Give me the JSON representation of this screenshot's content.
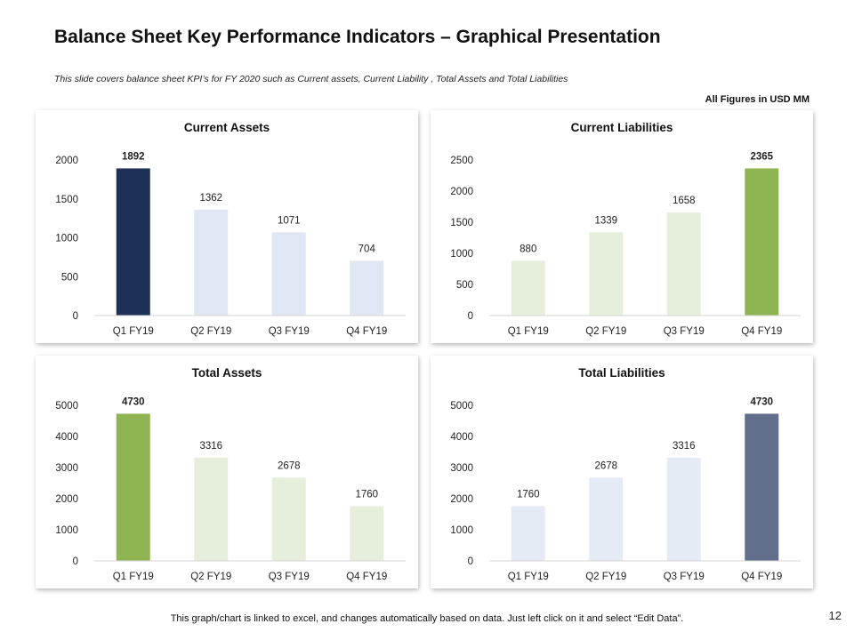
{
  "slide": {
    "title": "Balance Sheet Key Performance Indicators – Graphical Presentation",
    "subtitle": "This slide covers balance sheet KPI’s  for FY 2020 such as Current assets, Current Liability , Total Assets and Total Liabilities",
    "units_note": "All Figures in USD MM",
    "footer": "This graph/chart is linked to excel, and changes automatically based on data. Just left click on it and select “Edit Data”.",
    "page_number": "12"
  },
  "chart_data": [
    {
      "type": "bar",
      "title": "Current Assets",
      "categories": [
        "Q1 FY19",
        "Q2 FY19",
        "Q3 FY19",
        "Q4 FY19"
      ],
      "values": [
        1892,
        1362,
        1071,
        704
      ],
      "ylim": [
        0,
        2000
      ],
      "yticks": [
        0,
        500,
        1000,
        1500,
        2000
      ],
      "colors": [
        "#1f3057",
        "#dfe6f4",
        "#dfe6f4",
        "#dfe6f4"
      ],
      "bold_labels": [
        true,
        false,
        false,
        false
      ],
      "grid": false,
      "legend": "none"
    },
    {
      "type": "bar",
      "title": "Current Liabilities",
      "categories": [
        "Q1 FY19",
        "Q2 FY19",
        "Q3 FY19",
        "Q4 FY19"
      ],
      "values": [
        880,
        1339,
        1658,
        2365
      ],
      "ylim": [
        0,
        2500
      ],
      "yticks": [
        0,
        500,
        1000,
        1500,
        2000,
        2500
      ],
      "colors": [
        "#e6efdc",
        "#e6efdc",
        "#e6efdc",
        "#8fb552"
      ],
      "bold_labels": [
        false,
        false,
        false,
        true
      ],
      "grid": false,
      "legend": "none"
    },
    {
      "type": "bar",
      "title": "Total Assets",
      "categories": [
        "Q1 FY19",
        "Q2 FY19",
        "Q3 FY19",
        "Q4 FY19"
      ],
      "values": [
        4730,
        3316,
        2678,
        1760
      ],
      "ylim": [
        0,
        5000
      ],
      "yticks": [
        0,
        1000,
        2000,
        3000,
        4000,
        5000
      ],
      "colors": [
        "#8fb552",
        "#e6efdc",
        "#e6efdc",
        "#e6efdc"
      ],
      "bold_labels": [
        true,
        false,
        false,
        false
      ],
      "grid": false,
      "legend": "none"
    },
    {
      "type": "bar",
      "title": "Total Liabilities",
      "categories": [
        "Q1 FY19",
        "Q2 FY19",
        "Q3 FY19",
        "Q4 FY19"
      ],
      "values": [
        1760,
        2678,
        3316,
        4730
      ],
      "ylim": [
        0,
        5000
      ],
      "yticks": [
        0,
        1000,
        2000,
        3000,
        4000,
        5000
      ],
      "colors": [
        "#e5ebf5",
        "#e5ebf5",
        "#e5ebf5",
        "#616f8c"
      ],
      "bold_labels": [
        false,
        false,
        false,
        true
      ],
      "grid": false,
      "legend": "none"
    }
  ]
}
